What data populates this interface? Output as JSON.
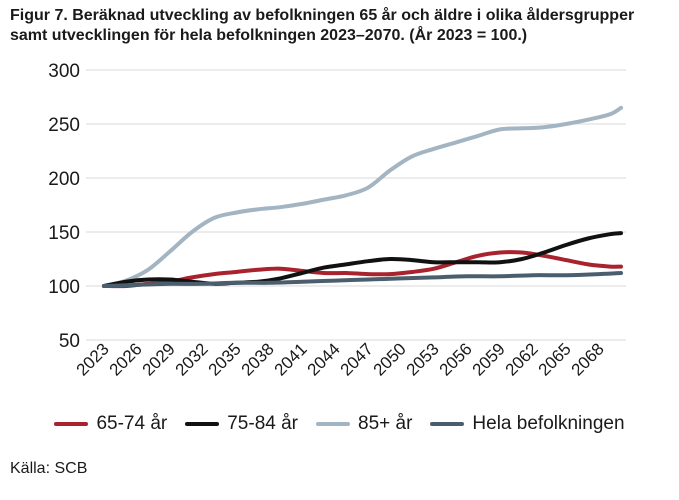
{
  "title_lines": [
    "Figur 7. Beräknad utveckling av befolkningen 65 år och äldre i olika åldersgrupper",
    "samt utvecklingen för hela befolkningen 2023–2070. (År 2023 = 100.)"
  ],
  "source": "Källa: SCB",
  "chart_data": {
    "type": "line",
    "title": "Figur 7. Beräknad utveckling av befolkningen 65 år och äldre i olika åldersgrupper samt utvecklingen för hela befolkningen 2023–2070. (År 2023 = 100.)",
    "xlabel": "",
    "ylabel": "",
    "ylim": [
      50,
      300
    ],
    "yticks": [
      50,
      100,
      150,
      200,
      250,
      300
    ],
    "xlim": [
      2023,
      2070
    ],
    "xticks": [
      "2023",
      "2026",
      "2029",
      "2032",
      "2035",
      "2038",
      "2041",
      "2044",
      "2047",
      "2050",
      "2053",
      "2056",
      "2059",
      "2062",
      "2065",
      "2068"
    ],
    "grid": "horizontal",
    "legend_position": "bottom",
    "series": [
      {
        "name": "65-74 år",
        "color": "#a8232e",
        "x": [
          2023,
          2025,
          2027,
          2029,
          2031,
          2033,
          2035,
          2037,
          2039,
          2041,
          2043,
          2045,
          2047,
          2049,
          2051,
          2053,
          2055,
          2057,
          2059,
          2061,
          2063,
          2065,
          2067,
          2069,
          2070
        ],
        "values": [
          100,
          100,
          102,
          104,
          108,
          111,
          113,
          115,
          116,
          114,
          112,
          112,
          111,
          111,
          113,
          116,
          122,
          128,
          131,
          131,
          128,
          124,
          120,
          118,
          118
        ]
      },
      {
        "name": "75-84 år",
        "color": "#111111",
        "x": [
          2023,
          2025,
          2027,
          2029,
          2031,
          2033,
          2035,
          2037,
          2039,
          2041,
          2043,
          2045,
          2047,
          2049,
          2051,
          2053,
          2055,
          2057,
          2059,
          2061,
          2063,
          2065,
          2067,
          2069,
          2070
        ],
        "values": [
          100,
          104,
          106,
          106,
          104,
          102,
          103,
          104,
          107,
          112,
          117,
          120,
          123,
          125,
          124,
          122,
          122,
          122,
          122,
          125,
          131,
          138,
          144,
          148,
          149
        ]
      },
      {
        "name": "85+ år",
        "color": "#a3b5c3",
        "x": [
          2023,
          2025,
          2027,
          2029,
          2031,
          2033,
          2035,
          2037,
          2039,
          2041,
          2043,
          2045,
          2047,
          2049,
          2051,
          2053,
          2055,
          2057,
          2059,
          2061,
          2063,
          2065,
          2067,
          2069,
          2070
        ],
        "values": [
          100,
          105,
          115,
          132,
          150,
          163,
          168,
          171,
          173,
          176,
          180,
          184,
          191,
          207,
          220,
          227,
          233,
          239,
          245,
          246,
          247,
          250,
          254,
          259,
          265
        ]
      },
      {
        "name": "Hela befolkningen",
        "color": "#4a5e6e",
        "x": [
          2023,
          2026,
          2029,
          2032,
          2035,
          2038,
          2041,
          2044,
          2047,
          2050,
          2053,
          2056,
          2059,
          2062,
          2065,
          2068,
          2070
        ],
        "values": [
          100,
          101,
          102,
          102,
          103,
          103,
          104,
          105,
          106,
          107,
          108,
          109,
          109,
          110,
          110,
          111,
          112
        ]
      }
    ]
  }
}
